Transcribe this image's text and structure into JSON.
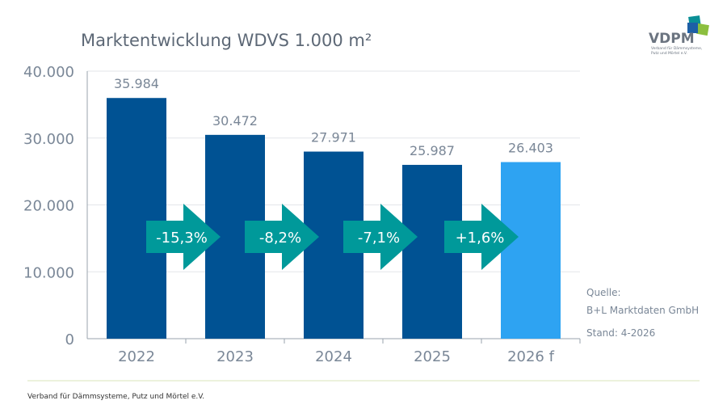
{
  "title": "Marktentwicklung WDVS 1.000 m²",
  "logo": {
    "text": "VDPM",
    "subtitle_line1": "Verband für Dämmsysteme,",
    "subtitle_line2": "Putz und Mörtel e.V."
  },
  "source": {
    "label": "Quelle:",
    "name": "B+L Marktdaten GmbH",
    "date": "Stand: 4-2026"
  },
  "footer": "Verband für Dämmsysteme, Putz und Mörtel e.V.",
  "colors": {
    "bar": "#005293",
    "forecast_bar": "#2ea3f2",
    "arrow": "#00999a",
    "axis_text": "#7a8797"
  },
  "chart_data": {
    "type": "bar",
    "title": "Marktentwicklung WDVS 1.000 m²",
    "categories": [
      "2022",
      "2023",
      "2024",
      "2025",
      "2026 f"
    ],
    "values": [
      35984,
      30472,
      27971,
      25987,
      26403
    ],
    "data_labels": [
      "35.984",
      "30.472",
      "27.971",
      "25.987",
      "26.403"
    ],
    "ylim": [
      0,
      40000
    ],
    "yticks": [
      0,
      10000,
      20000,
      30000,
      40000
    ],
    "ytick_labels": [
      "0",
      "10.000",
      "20.000",
      "30.000",
      "40.000"
    ],
    "grid": true,
    "changes": [
      "-15,3%",
      "-8,2%",
      "-7,1%",
      "+1,6%"
    ]
  }
}
